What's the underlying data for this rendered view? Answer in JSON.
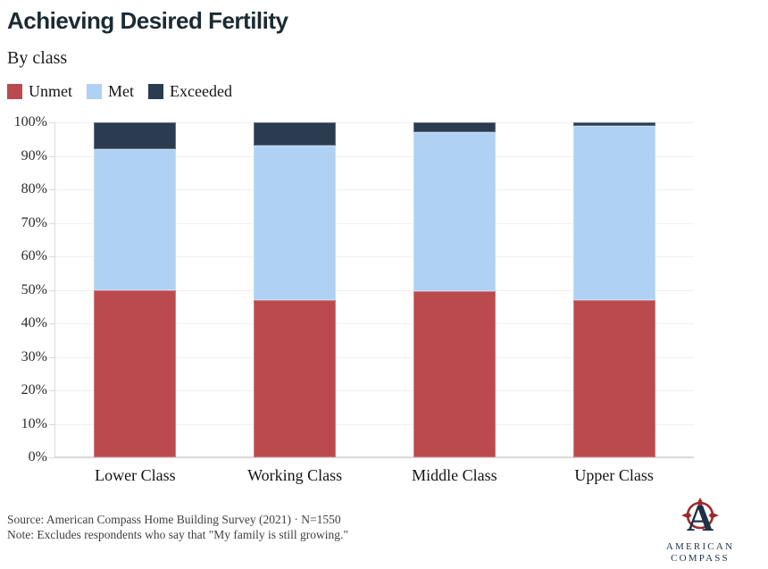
{
  "header": {
    "title": "Achieving Desired Fertility",
    "subtitle": "By class"
  },
  "chart_data": {
    "type": "bar",
    "variant": "stacked-percent",
    "title": "Achieving Desired Fertility",
    "subtitle": "By class",
    "categories": [
      "Lower Class",
      "Working Class",
      "Middle Class",
      "Upper Class"
    ],
    "series": [
      {
        "name": "Unmet",
        "color": "#bb4a4f",
        "values": [
          50,
          47,
          49.5,
          47
        ]
      },
      {
        "name": "Met",
        "color": "#aed1f4",
        "values": [
          42,
          46,
          47.5,
          52
        ]
      },
      {
        "name": "Exceeded",
        "color": "#2b3c50",
        "values": [
          8,
          7,
          3,
          1
        ]
      }
    ],
    "ylim": [
      0,
      100
    ],
    "ytick_step": 10,
    "y_suffix": "%",
    "grid": "horizontal-faint",
    "legend_position": "top-left"
  },
  "footer": {
    "source_line": "Source: American Compass Home Building Survey (2021) · N=1550",
    "note_line": "Note: Excludes respondents who say that \"My family is still growing.\""
  },
  "logo": {
    "letter": "A",
    "line1": "AMERICAN",
    "line2": "COMPASS",
    "ring_color": "#9c2b2e",
    "navy_color": "#24364e"
  }
}
